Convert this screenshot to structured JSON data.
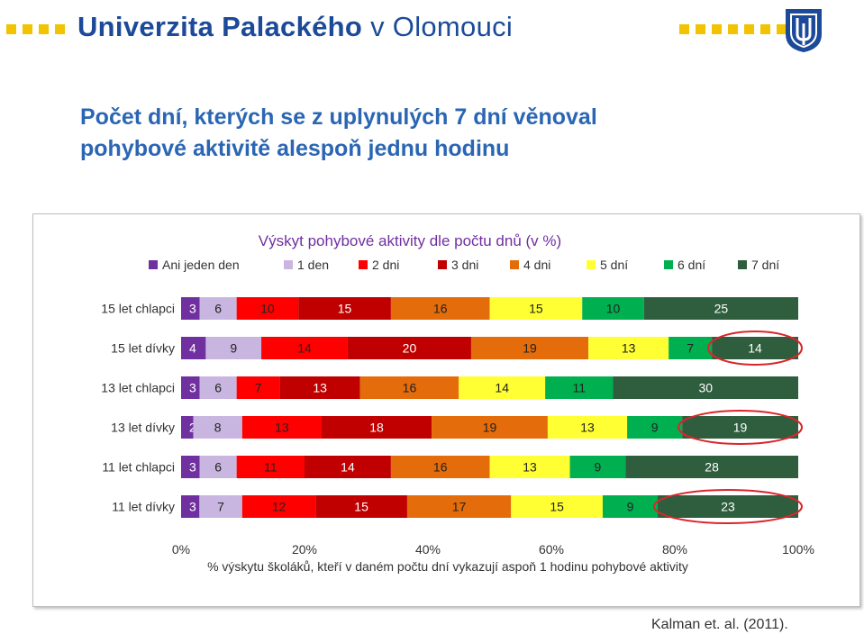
{
  "header": {
    "university_name": "Univerzita Palackého",
    "university_city": "v Olomouci",
    "logo": "upol-shield-icon",
    "accent_color": "#f2c300",
    "brand_color": "#1c4a99"
  },
  "slide": {
    "title_line1": "Počet dní, kterých se z uplynulých 7 dní věnoval",
    "title_line2": "pohybové aktivitě alespoň jednu hodinu",
    "citation": "Kalman et. al. (2011)."
  },
  "chart_data": {
    "type": "bar",
    "orientation": "horizontal",
    "stacked": "percent",
    "title": "Výskyt pohybové aktivity dle počtu dnů (v %)",
    "xlabel": "% výskytu školáků, kteří v daném počtu dní vykazují aspoň 1 hodinu pohybové aktivity",
    "ylabel": "",
    "xlim": [
      0,
      100
    ],
    "x_ticks": [
      "0%",
      "20%",
      "40%",
      "60%",
      "80%",
      "100%"
    ],
    "legend_position": "top",
    "categories": [
      "15 let chlapci",
      "15 let dívky",
      "13 let chlapci",
      "13 let dívky",
      "11 let chlapci",
      "11 let dívky"
    ],
    "series": [
      {
        "name": "Ani jeden den",
        "color": "#7030a0",
        "values": [
          3,
          4,
          3,
          2,
          3,
          3
        ]
      },
      {
        "name": "1 den",
        "color": "#c9b6e0",
        "values": [
          6,
          9,
          6,
          8,
          6,
          7
        ]
      },
      {
        "name": "2 dni",
        "color": "#ff0000",
        "values": [
          10,
          14,
          7,
          13,
          11,
          12
        ]
      },
      {
        "name": "3 dni",
        "color": "#c00000",
        "values": [
          15,
          20,
          13,
          18,
          14,
          15
        ]
      },
      {
        "name": "4 dni",
        "color": "#e46c0a",
        "values": [
          16,
          19,
          16,
          19,
          16,
          17
        ]
      },
      {
        "name": "5 dní",
        "color": "#ffff33",
        "values": [
          15,
          13,
          14,
          13,
          13,
          15
        ]
      },
      {
        "name": "6 dní",
        "color": "#00b050",
        "values": [
          10,
          7,
          11,
          9,
          9,
          9
        ]
      },
      {
        "name": "7 dní",
        "color": "#2e5e3e",
        "values": [
          25,
          14,
          30,
          19,
          28,
          23
        ]
      }
    ],
    "highlighted": [
      {
        "category": "15 let dívky",
        "series": "7 dní"
      },
      {
        "category": "13 let dívky",
        "series": "7 dní"
      },
      {
        "category": "11 let dívky",
        "series": "7 dní"
      }
    ],
    "highlight_color": "#d9262a"
  }
}
